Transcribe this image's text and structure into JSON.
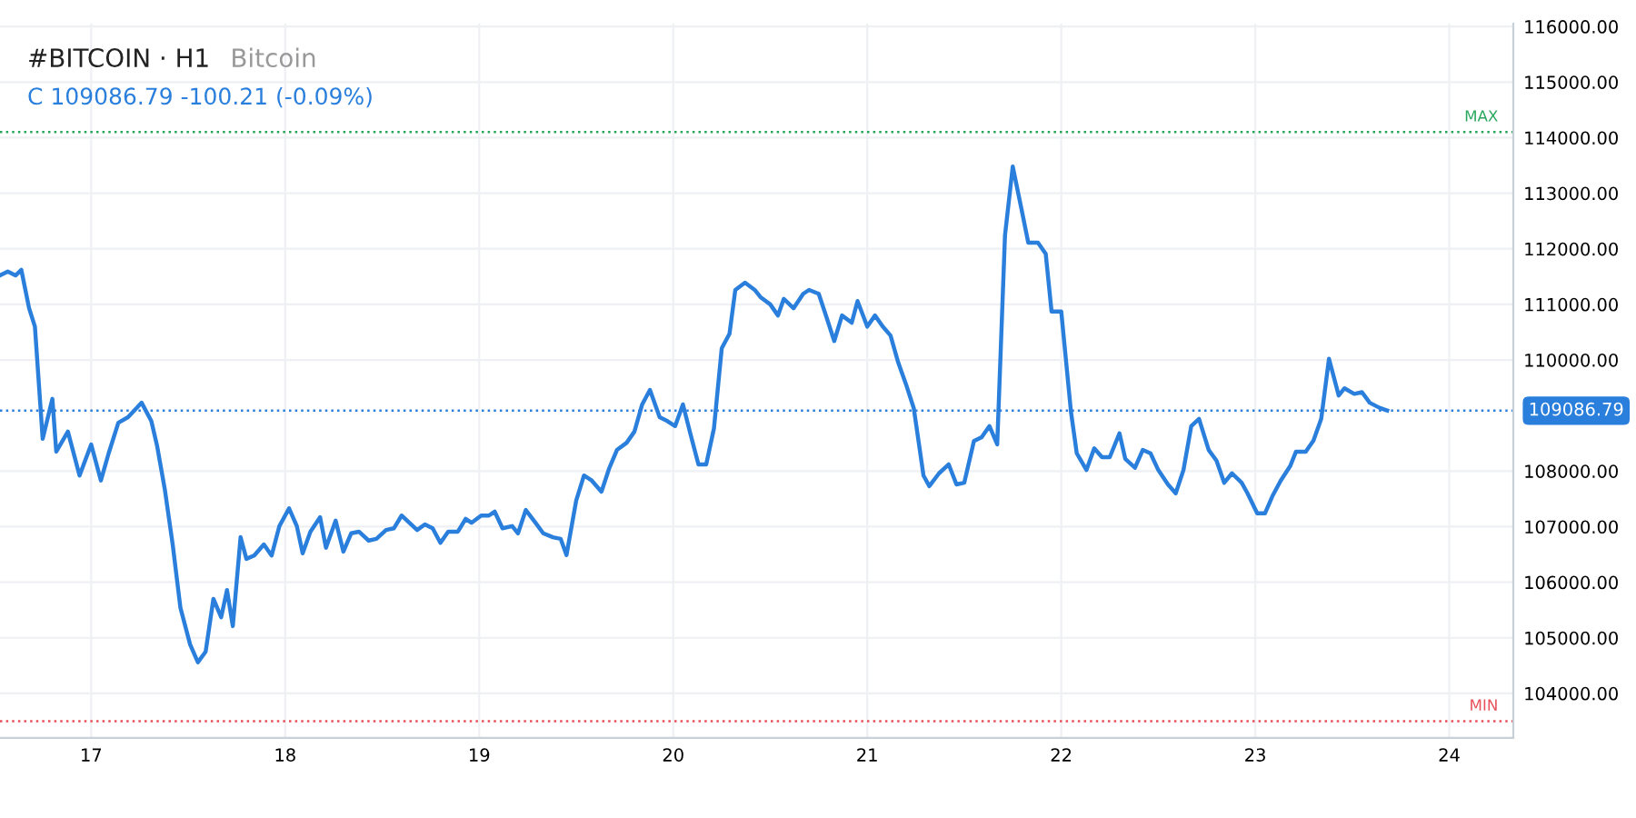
{
  "chart_data": {
    "type": "line",
    "title": "#BITCOIN · H1",
    "subtitle": "Bitcoin",
    "annotations": [
      "C 109086.79 -100.21 (-0.09%)"
    ],
    "x": [
      16.53,
      16.57,
      16.61,
      16.64,
      16.68,
      16.71,
      16.75,
      16.8,
      16.82,
      16.88,
      16.94,
      17.0,
      17.05,
      17.09,
      17.14,
      17.19,
      17.26,
      17.31,
      17.34,
      17.38,
      17.42,
      17.46,
      17.51,
      17.55,
      17.59,
      17.63,
      17.67,
      17.7,
      17.73,
      17.77,
      17.8,
      17.84,
      17.89,
      17.93,
      17.97,
      18.02,
      18.06,
      18.09,
      18.13,
      18.18,
      18.21,
      18.26,
      18.3,
      18.34,
      18.38,
      18.43,
      18.47,
      18.52,
      18.56,
      18.6,
      18.64,
      18.68,
      18.72,
      18.76,
      18.8,
      18.84,
      18.89,
      18.93,
      18.96,
      19.01,
      19.05,
      19.08,
      19.12,
      19.17,
      19.2,
      19.24,
      19.29,
      19.33,
      19.38,
      19.42,
      19.45,
      19.5,
      19.54,
      19.58,
      19.63,
      19.67,
      19.71,
      19.76,
      19.8,
      19.84,
      19.88,
      19.93,
      19.97,
      20.01,
      20.05,
      20.09,
      20.13,
      20.17,
      20.21,
      20.25,
      20.29,
      20.32,
      20.37,
      20.42,
      20.45,
      20.5,
      20.54,
      20.57,
      20.62,
      20.67,
      20.7,
      20.75,
      20.79,
      20.83,
      20.87,
      20.92,
      20.95,
      21.0,
      21.04,
      21.08,
      21.12,
      21.16,
      21.2,
      21.24,
      21.29,
      21.32,
      21.37,
      21.42,
      21.46,
      21.5,
      21.55,
      21.59,
      21.63,
      21.67,
      21.71,
      21.75,
      21.8,
      21.83,
      21.88,
      21.92,
      21.95,
      22.0,
      22.05,
      22.08,
      22.13,
      22.17,
      22.21,
      22.25,
      22.3,
      22.33,
      22.38,
      22.42,
      22.46,
      22.5,
      22.55,
      22.59,
      22.63,
      22.67,
      22.71,
      22.76,
      22.8,
      22.84,
      22.88,
      22.93,
      22.96,
      23.01,
      23.05,
      23.09,
      23.13,
      23.18,
      23.21,
      23.26,
      23.3,
      23.34,
      23.38,
      23.43,
      23.46,
      23.51,
      23.55,
      23.59,
      23.64,
      23.68
    ],
    "series": [
      {
        "color": "#2a7fdc",
        "values": [
          111520,
          111590,
          111520,
          111620,
          110930,
          110600,
          108580,
          109300,
          108350,
          108710,
          107920,
          108480,
          107830,
          108320,
          108870,
          108970,
          109230,
          108900,
          108450,
          107660,
          106680,
          105540,
          104880,
          104560,
          104750,
          105700,
          105370,
          105860,
          105210,
          106810,
          106420,
          106480,
          106680,
          106480,
          107010,
          107330,
          107010,
          106520,
          106910,
          107170,
          106620,
          107110,
          106550,
          106880,
          106910,
          106750,
          106780,
          106940,
          106970,
          107200,
          107070,
          106940,
          107040,
          106970,
          106710,
          106910,
          106910,
          107140,
          107070,
          107200,
          107200,
          107270,
          106970,
          107010,
          106880,
          107300,
          107070,
          106880,
          106810,
          106780,
          106490,
          107470,
          107920,
          107830,
          107630,
          108050,
          108380,
          108510,
          108710,
          109200,
          109460,
          108970,
          108900,
          108810,
          109200,
          108650,
          108120,
          108120,
          108770,
          110210,
          110470,
          111260,
          111390,
          111260,
          111130,
          111000,
          110800,
          111100,
          110930,
          111190,
          111260,
          111190,
          110770,
          110340,
          110800,
          110670,
          111060,
          110600,
          110800,
          110600,
          110440,
          109950,
          109560,
          109130,
          107920,
          107730,
          107960,
          108120,
          107760,
          107790,
          108540,
          108610,
          108810,
          108480,
          112240,
          113480,
          112630,
          112110,
          112110,
          111910,
          110870,
          110870,
          109070,
          108320,
          108020,
          108410,
          108250,
          108250,
          108680,
          108220,
          108060,
          108380,
          108320,
          108020,
          107760,
          107600,
          108020,
          108810,
          108940,
          108380,
          108190,
          107790,
          107960,
          107790,
          107600,
          107240,
          107240,
          107560,
          107820,
          108090,
          108350,
          108350,
          108550,
          108940,
          110020,
          109360,
          109490,
          109390,
          109420,
          109230,
          109140,
          109090
        ]
      }
    ],
    "xlim": [
      16.53,
      24.33
    ],
    "xticks": [
      17,
      18,
      19,
      20,
      21,
      22,
      23,
      24
    ],
    "ylim": [
      103200,
      116050
    ],
    "yticks": [
      {
        "value": 104000,
        "label": "104000.00"
      },
      {
        "value": 105000,
        "label": "105000.00"
      },
      {
        "value": 106000,
        "label": "106000.00"
      },
      {
        "value": 107000,
        "label": "107000.00"
      },
      {
        "value": 108000,
        "label": "108000.00"
      },
      {
        "value": 110000,
        "label": "110000.00"
      },
      {
        "value": 111000,
        "label": "111000.00"
      },
      {
        "value": 112000,
        "label": "112000.00"
      },
      {
        "value": 113000,
        "label": "113000.00"
      },
      {
        "value": 114000,
        "label": "114000.00"
      },
      {
        "value": 115000,
        "label": "115000.00"
      },
      {
        "value": 116000,
        "label": "116000.00"
      }
    ],
    "ref_lines": [
      {
        "axis": "y",
        "value": 114100,
        "label": "MAX",
        "color": "#26a65b",
        "line_style": "dotted"
      },
      {
        "axis": "y",
        "value": 103500,
        "label": "MIN",
        "color": "#e8505b",
        "line_style": "dotted"
      },
      {
        "axis": "y",
        "value": 109086.79,
        "label": "109086.79",
        "color": "#2a7fdc",
        "line_style": "dotted"
      }
    ],
    "grid": true,
    "marker": "none",
    "line_style": "solid",
    "legend": false
  }
}
